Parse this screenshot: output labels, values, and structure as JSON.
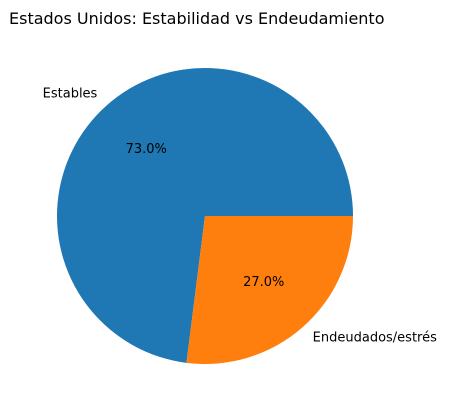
{
  "chart_data": {
    "type": "pie",
    "title": "Estados Unidos: Estabilidad vs Endeudamiento",
    "slices": [
      {
        "label": "Estables",
        "value": 73.0,
        "pct_label": "73.0%",
        "color": "#1f77b4"
      },
      {
        "label": "Endeudados/estrés",
        "value": 27.0,
        "pct_label": "27.0%",
        "color": "#ff7f0e"
      }
    ],
    "start_angle_deg": 0,
    "direction": "counterclockwise"
  }
}
